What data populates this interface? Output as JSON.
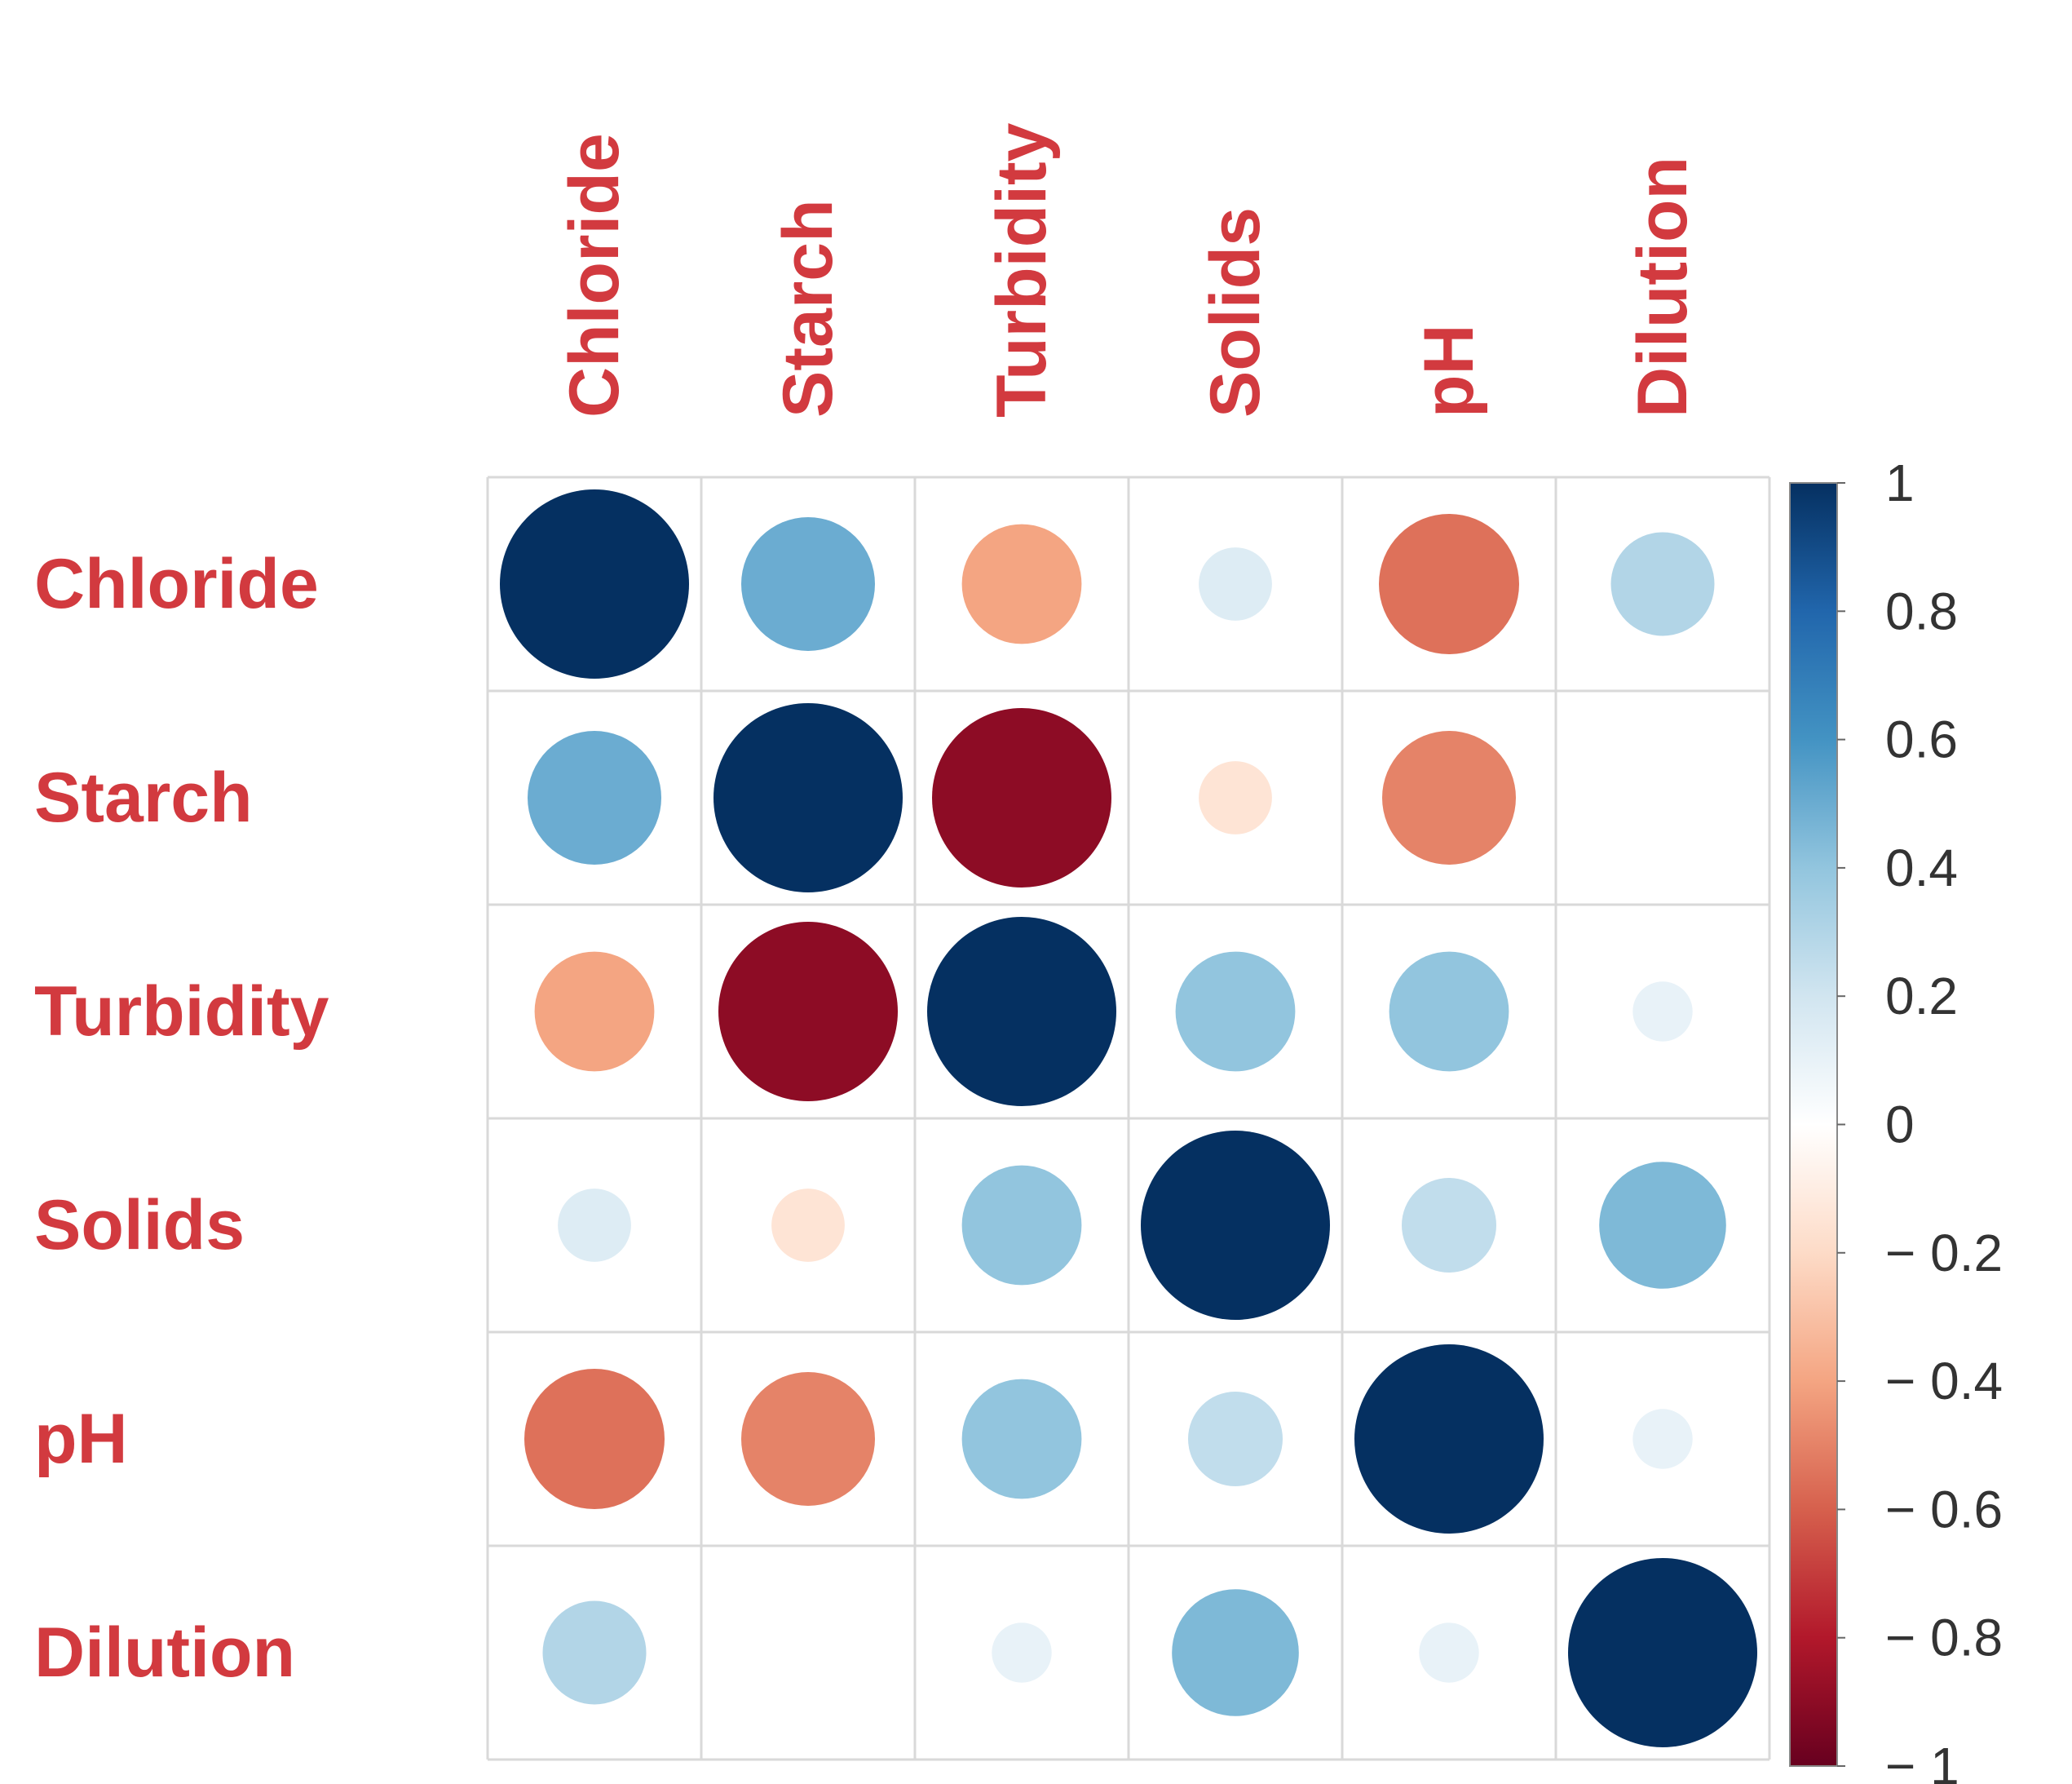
{
  "chart_data": {
    "type": "heatmap",
    "subtype": "correlation-circles",
    "variables": [
      "Chloride",
      "Starch",
      "Turbidity",
      "Solids",
      "pH",
      "Dilution"
    ],
    "matrix": [
      [
        1.0,
        0.5,
        -0.4,
        0.15,
        -0.55,
        0.3
      ],
      [
        0.5,
        1.0,
        -0.9,
        -0.15,
        -0.5,
        0.0
      ],
      [
        -0.4,
        -0.9,
        1.0,
        0.4,
        0.4,
        0.1
      ],
      [
        0.15,
        -0.15,
        0.4,
        1.0,
        0.25,
        0.45
      ],
      [
        -0.55,
        -0.5,
        0.4,
        0.25,
        1.0,
        0.1
      ],
      [
        0.3,
        0.0,
        0.1,
        0.45,
        0.1,
        1.0
      ]
    ],
    "colorbar": {
      "range": [
        -1,
        1
      ],
      "ticks": [
        1,
        0.8,
        0.6,
        0.4,
        0.2,
        0,
        -0.2,
        -0.4,
        -0.6,
        -0.8,
        -1
      ],
      "tick_labels": [
        "1",
        "0.8",
        "0.6",
        "0.4",
        "0.2",
        "0",
        "− 0.2",
        "− 0.4",
        "− 0.6",
        "− 0.8",
        "− 1"
      ],
      "colors": {
        "neg1": "#67001F",
        "neg08": "#B2182B",
        "neg06": "#D6604D",
        "neg04": "#F4A582",
        "neg02": "#FDDBC7",
        "zero": "#FFFFFF",
        "pos02": "#D1E5F0",
        "pos04": "#92C5DE",
        "pos06": "#4393C3",
        "pos08": "#2166AC",
        "pos1": "#053061"
      }
    },
    "label_color": "#D23A3F",
    "grid_color": "#D9D9D9"
  }
}
